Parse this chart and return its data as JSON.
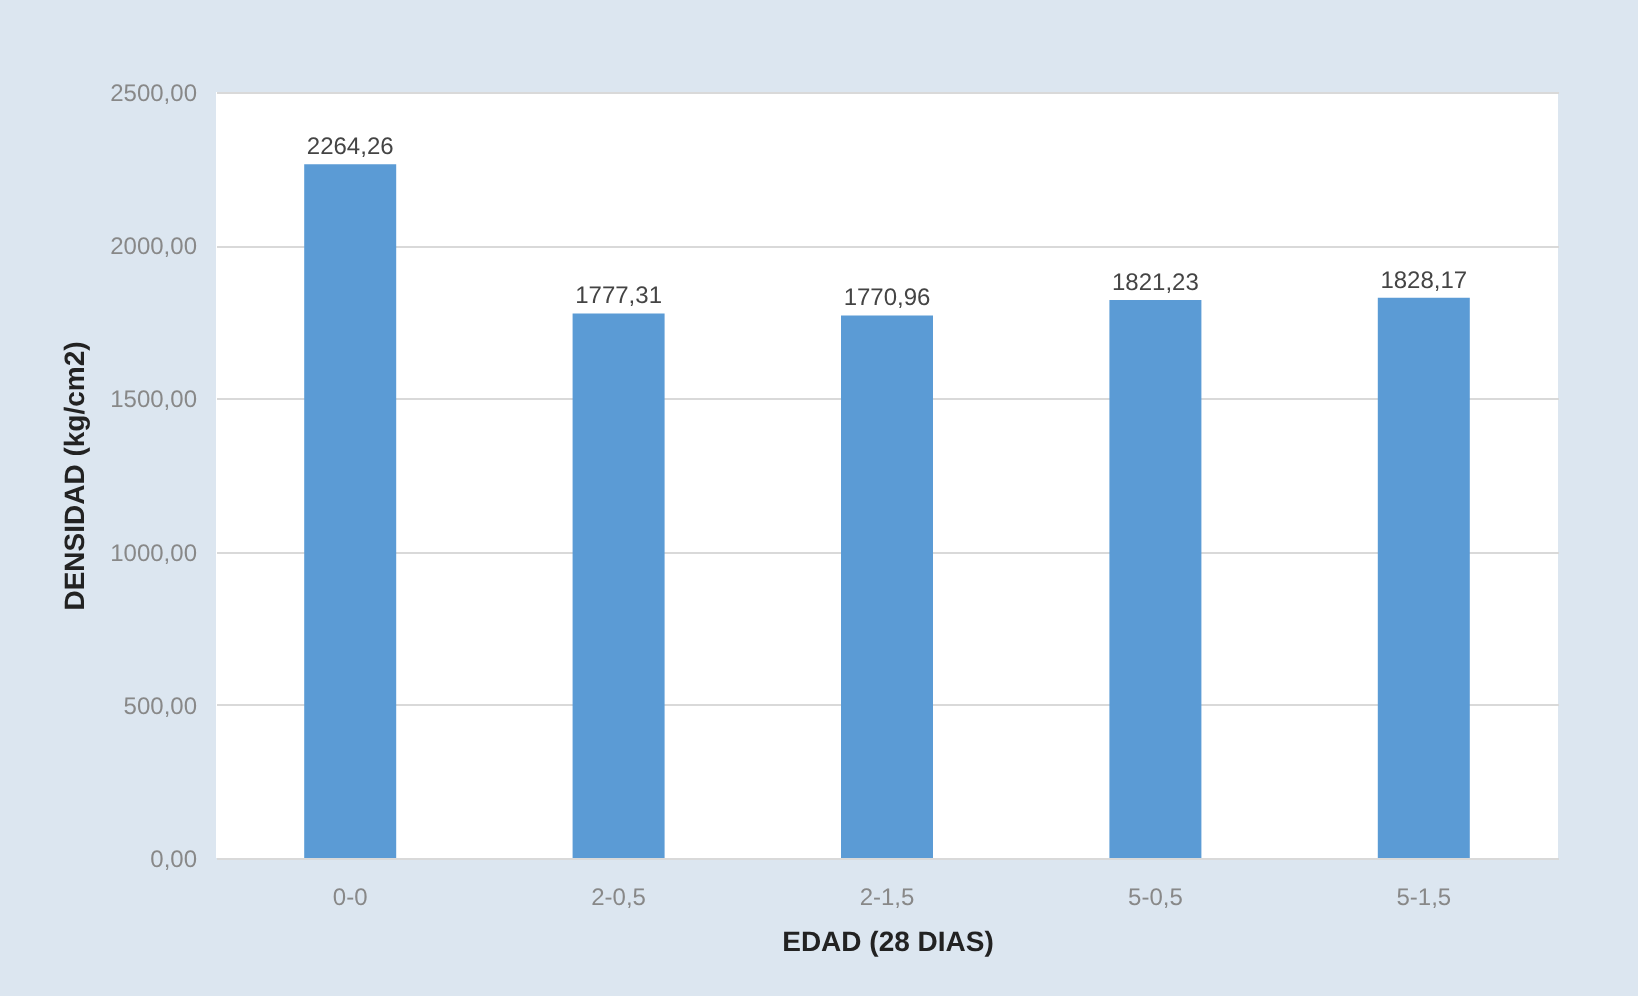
{
  "chart_data": {
    "type": "bar",
    "xlabel": "EDAD (28 DIAS)",
    "ylabel": "DENSIDAD    (kg/cm2)",
    "categories": [
      "0-0",
      "2-0,5",
      "2-1,5",
      "5-0,5",
      "5-1,5"
    ],
    "values": [
      2264.26,
      1777.31,
      1770.96,
      1821.23,
      1828.17
    ],
    "value_labels": [
      "2264,26",
      "1777,31",
      "1770,96",
      "1821,23",
      "1828,17"
    ],
    "color": "#5b9bd5",
    "ylim": [
      0,
      2500
    ],
    "yticks": [
      {
        "value": 0,
        "label": "0,00"
      },
      {
        "value": 500,
        "label": "500,00"
      },
      {
        "value": 1000,
        "label": "1000,00"
      },
      {
        "value": 1500,
        "label": "1500,00"
      },
      {
        "value": 2000,
        "label": "2000,00"
      },
      {
        "value": 2500,
        "label": "2500,00"
      }
    ],
    "grid": "y"
  }
}
